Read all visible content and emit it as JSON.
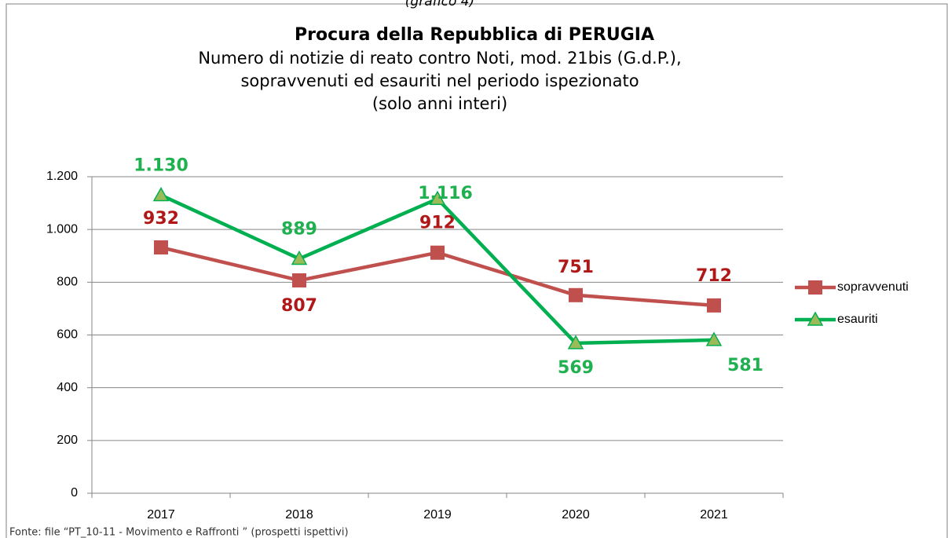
{
  "header": "(grafico 4)",
  "footer": "Fonte: file “PT_10-11 - Movimento e Raffronti ” (prospetti ispettivi)",
  "chart_data": {
    "type": "line",
    "title": "Procura della Repubblica di PERUGIA",
    "subtitle": [
      "Numero di notizie di reato contro Noti, mod. 21bis (G.d.P.),",
      "sopravvenuti ed esauriti nel periodo ispezionato",
      "(solo anni interi)"
    ],
    "categories": [
      "2017",
      "2018",
      "2019",
      "2020",
      "2021"
    ],
    "series": [
      {
        "name": "sopravvenuti",
        "color": "#c0504d",
        "label_color": "#b01818",
        "marker": "square",
        "values": [
          932,
          807,
          912,
          751,
          712
        ]
      },
      {
        "name": "esauriti",
        "color": "#00b050",
        "label_color": "#1fb050",
        "marker": "triangle",
        "marker_fill": "#9bbb59",
        "values": [
          1130,
          889,
          1116,
          569,
          581
        ],
        "value_labels": [
          "1.130",
          "889",
          "1.116",
          "569",
          "581"
        ]
      }
    ],
    "ylim": [
      0,
      1200
    ],
    "yticks": [
      0,
      200,
      400,
      600,
      800,
      {
        "value": 1000,
        "label": "1.000"
      },
      {
        "value": 1200,
        "label": "1.200"
      }
    ],
    "grid": true,
    "legend": "right"
  }
}
